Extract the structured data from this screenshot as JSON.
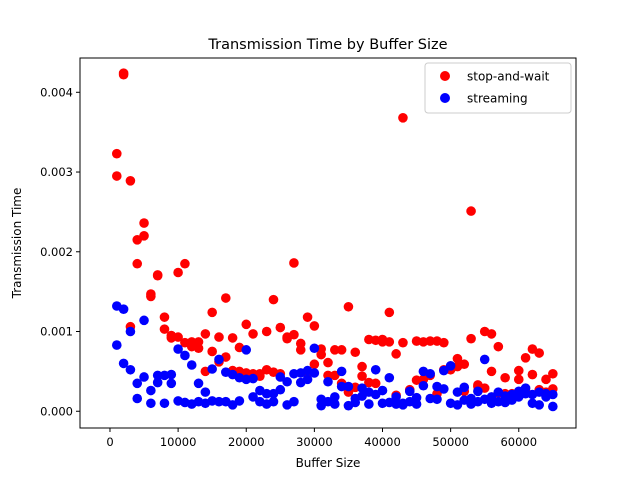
{
  "chart_data": {
    "type": "scatter",
    "title": "Transmission Time by Buffer Size",
    "xlabel": "Buffer Size",
    "ylabel": "Transmission Time",
    "xlim": [
      -4400,
      68400
    ],
    "ylim": [
      -0.00021,
      0.00443
    ],
    "xticks": [
      {
        "value": 0,
        "label": "0"
      },
      {
        "value": 10000,
        "label": "10000"
      },
      {
        "value": 20000,
        "label": "20000"
      },
      {
        "value": 30000,
        "label": "30000"
      },
      {
        "value": 40000,
        "label": "40000"
      },
      {
        "value": 50000,
        "label": "50000"
      },
      {
        "value": 60000,
        "label": "60000"
      }
    ],
    "yticks": [
      {
        "value": 0,
        "label": "0.000"
      },
      {
        "value": 0.001,
        "label": "0.001"
      },
      {
        "value": 0.002,
        "label": "0.002"
      },
      {
        "value": 0.003,
        "label": "0.003"
      },
      {
        "value": 0.004,
        "label": "0.004"
      }
    ],
    "grid": false,
    "legend_position": "top-right",
    "series": [
      {
        "name": "stop-and-wait",
        "color": "#ff0000",
        "points": [
          [
            1000,
            0.00323
          ],
          [
            1000,
            0.00295
          ],
          [
            2000,
            0.00424
          ],
          [
            2000,
            0.00422
          ],
          [
            3000,
            0.00289
          ],
          [
            3000,
            0.00106
          ],
          [
            4000,
            0.00215
          ],
          [
            4000,
            0.00185
          ],
          [
            5000,
            0.00236
          ],
          [
            5000,
            0.0022
          ],
          [
            6000,
            0.00147
          ],
          [
            6000,
            0.00144
          ],
          [
            7000,
            0.00171
          ],
          [
            7000,
            0.0017
          ],
          [
            8000,
            0.00118
          ],
          [
            8000,
            0.00103
          ],
          [
            9000,
            0.00095
          ],
          [
            9000,
            0.00092
          ],
          [
            10000,
            0.00174
          ],
          [
            10000,
            0.00093
          ],
          [
            11000,
            0.00185
          ],
          [
            11000,
            0.00086
          ],
          [
            12000,
            0.00087
          ],
          [
            12000,
            0.00081
          ],
          [
            13000,
            0.00087
          ],
          [
            13000,
            0.00079
          ],
          [
            14000,
            0.00097
          ],
          [
            14000,
            0.0005
          ],
          [
            15000,
            0.00124
          ],
          [
            15000,
            0.00075
          ],
          [
            16000,
            0.00093
          ],
          [
            16000,
            0.00062
          ],
          [
            17000,
            0.00142
          ],
          [
            17000,
            0.00068
          ],
          [
            18000,
            0.00092
          ],
          [
            18000,
            0.00051
          ],
          [
            19000,
            0.0008
          ],
          [
            19000,
            0.0005
          ],
          [
            20000,
            0.00109
          ],
          [
            20000,
            0.00048
          ],
          [
            21000,
            0.00097
          ],
          [
            21000,
            0.00047
          ],
          [
            22000,
            0.00047
          ],
          [
            22000,
            0.00044
          ],
          [
            23000,
            0.001
          ],
          [
            23000,
            0.00052
          ],
          [
            24000,
            0.0014
          ],
          [
            24000,
            0.00049
          ],
          [
            25000,
            0.00105
          ],
          [
            25000,
            0.00047
          ],
          [
            26000,
            0.00093
          ],
          [
            26000,
            0.00091
          ],
          [
            27000,
            0.00186
          ],
          [
            27000,
            0.00096
          ],
          [
            28000,
            0.00085
          ],
          [
            28000,
            0.00077
          ],
          [
            29000,
            0.00118
          ],
          [
            29000,
            0.00048
          ],
          [
            30000,
            0.00107
          ],
          [
            30000,
            0.00059
          ],
          [
            31000,
            0.00078
          ],
          [
            31000,
            0.00071
          ],
          [
            32000,
            0.00061
          ],
          [
            32000,
            0.00045
          ],
          [
            33000,
            0.00077
          ],
          [
            33000,
            0.00045
          ],
          [
            34000,
            0.00077
          ],
          [
            34000,
            0.00035
          ],
          [
            35000,
            0.00131
          ],
          [
            35000,
            0.00024
          ],
          [
            36000,
            0.00074
          ],
          [
            36000,
            0.0003
          ],
          [
            37000,
            0.00056
          ],
          [
            37000,
            0.00044
          ],
          [
            38000,
            0.0009
          ],
          [
            38000,
            0.00036
          ],
          [
            39000,
            0.00089
          ],
          [
            39000,
            0.00035
          ],
          [
            40000,
            0.0009
          ],
          [
            40000,
            0.00087
          ],
          [
            41000,
            0.00124
          ],
          [
            41000,
            0.00087
          ],
          [
            42000,
            0.00072
          ],
          [
            42000,
            0.0002
          ],
          [
            43000,
            0.00368
          ],
          [
            43000,
            0.00086
          ],
          [
            44000,
            0.00027
          ],
          [
            44000,
            0.00026
          ],
          [
            45000,
            0.00088
          ],
          [
            45000,
            0.00039
          ],
          [
            46000,
            0.00087
          ],
          [
            46000,
            0.0004
          ],
          [
            47000,
            0.00088
          ],
          [
            47000,
            0.00045
          ],
          [
            48000,
            0.00088
          ],
          [
            48000,
            0.00022
          ],
          [
            49000,
            0.00086
          ],
          [
            49000,
            0.00052
          ],
          [
            50000,
            0.00053
          ],
          [
            50000,
            0.00052
          ],
          [
            51000,
            0.00066
          ],
          [
            51000,
            0.00056
          ],
          [
            52000,
            0.00059
          ],
          [
            52000,
            0.00025
          ],
          [
            53000,
            0.00251
          ],
          [
            53000,
            0.00091
          ],
          [
            54000,
            0.00033
          ],
          [
            54000,
            0.00031
          ],
          [
            55000,
            0.001
          ],
          [
            55000,
            0.00029
          ],
          [
            56000,
            0.00097
          ],
          [
            56000,
            0.0005
          ],
          [
            57000,
            0.00081
          ],
          [
            57000,
            0.00023
          ],
          [
            58000,
            0.00042
          ],
          [
            58000,
            0.00022
          ],
          [
            59000,
            0.00022
          ],
          [
            59000,
            0.00021
          ],
          [
            60000,
            0.00051
          ],
          [
            60000,
            0.0004
          ],
          [
            61000,
            0.00067
          ],
          [
            61000,
            0.00025
          ],
          [
            62000,
            0.00078
          ],
          [
            62000,
            0.00046
          ],
          [
            63000,
            0.00073
          ],
          [
            63000,
            0.00027
          ],
          [
            64000,
            0.0004
          ],
          [
            64000,
            0.00024
          ],
          [
            65000,
            0.00047
          ],
          [
            65000,
            0.00028
          ]
        ]
      },
      {
        "name": "streaming",
        "color": "#0000ff",
        "points": [
          [
            1000,
            0.00132
          ],
          [
            1000,
            0.00083
          ],
          [
            2000,
            0.00128
          ],
          [
            2000,
            0.0006
          ],
          [
            3000,
            0.001
          ],
          [
            3000,
            0.00052
          ],
          [
            4000,
            0.00035
          ],
          [
            4000,
            0.00016
          ],
          [
            5000,
            0.00114
          ],
          [
            5000,
            0.00043
          ],
          [
            6000,
            0.00026
          ],
          [
            6000,
            0.0001
          ],
          [
            7000,
            0.00045
          ],
          [
            7000,
            0.00036
          ],
          [
            8000,
            0.00045
          ],
          [
            8000,
            0.0001
          ],
          [
            9000,
            0.00046
          ],
          [
            9000,
            0.00035
          ],
          [
            10000,
            0.00078
          ],
          [
            10000,
            0.00013
          ],
          [
            11000,
            0.0007
          ],
          [
            11000,
            0.00011
          ],
          [
            12000,
            0.00058
          ],
          [
            12000,
            9e-05
          ],
          [
            13000,
            0.00035
          ],
          [
            13000,
            0.00012
          ],
          [
            14000,
            0.00024
          ],
          [
            14000,
            0.0001
          ],
          [
            15000,
            0.00053
          ],
          [
            15000,
            0.00013
          ],
          [
            16000,
            0.00065
          ],
          [
            16000,
            0.00012
          ],
          [
            17000,
            0.00049
          ],
          [
            17000,
            0.00012
          ],
          [
            18000,
            0.00046
          ],
          [
            18000,
            8e-05
          ],
          [
            19000,
            0.00042
          ],
          [
            19000,
            0.00013
          ],
          [
            20000,
            0.00077
          ],
          [
            20000,
            0.0004
          ],
          [
            21000,
            0.00041
          ],
          [
            21000,
            0.00018
          ],
          [
            22000,
            0.00026
          ],
          [
            22000,
            0.00012
          ],
          [
            23000,
            0.00022
          ],
          [
            23000,
            9e-05
          ],
          [
            24000,
            0.00022
          ],
          [
            24000,
            0.00012
          ],
          [
            25000,
            0.00043
          ],
          [
            25000,
            0.00027
          ],
          [
            26000,
            0.00037
          ],
          [
            26000,
            8e-05
          ],
          [
            27000,
            0.00047
          ],
          [
            27000,
            0.00012
          ],
          [
            28000,
            0.00048
          ],
          [
            28000,
            0.00036
          ],
          [
            29000,
            0.00051
          ],
          [
            29000,
            0.0004
          ],
          [
            30000,
            0.00079
          ],
          [
            30000,
            0.00048
          ],
          [
            31000,
            0.00015
          ],
          [
            31000,
            7e-05
          ],
          [
            32000,
            0.00037
          ],
          [
            32000,
            0.00012
          ],
          [
            33000,
            0.00018
          ],
          [
            33000,
            9e-05
          ],
          [
            34000,
            0.0005
          ],
          [
            34000,
            0.00031
          ],
          [
            35000,
            0.00031
          ],
          [
            35000,
            7e-05
          ],
          [
            36000,
            0.00016
          ],
          [
            36000,
            0.00011
          ],
          [
            37000,
            0.00029
          ],
          [
            37000,
            0.00019
          ],
          [
            38000,
            0.00024
          ],
          [
            38000,
            9e-05
          ],
          [
            39000,
            0.00052
          ],
          [
            39000,
            0.00021
          ],
          [
            40000,
            0.00026
          ],
          [
            40000,
            0.0001
          ],
          [
            41000,
            0.00042
          ],
          [
            41000,
            0.00011
          ],
          [
            42000,
            0.00018
          ],
          [
            42000,
            9e-05
          ],
          [
            43000,
            0.0001
          ],
          [
            43000,
            8e-05
          ],
          [
            44000,
            0.00025
          ],
          [
            44000,
            0.00012
          ],
          [
            45000,
            0.00017
          ],
          [
            45000,
            9e-05
          ],
          [
            46000,
            0.0005
          ],
          [
            46000,
            0.00032
          ],
          [
            47000,
            0.00047
          ],
          [
            47000,
            0.00016
          ],
          [
            48000,
            0.00031
          ],
          [
            48000,
            0.00015
          ],
          [
            49000,
            0.00051
          ],
          [
            49000,
            0.00028
          ],
          [
            50000,
            0.00057
          ],
          [
            50000,
            0.0001
          ],
          [
            51000,
            0.00024
          ],
          [
            51000,
            8e-05
          ],
          [
            52000,
            0.0003
          ],
          [
            52000,
            0.00014
          ],
          [
            53000,
            0.00016
          ],
          [
            53000,
            9e-05
          ],
          [
            54000,
            0.00025
          ],
          [
            54000,
            0.00012
          ],
          [
            55000,
            0.00065
          ],
          [
            55000,
            0.00015
          ],
          [
            56000,
            0.00018
          ],
          [
            56000,
            0.0001
          ],
          [
            57000,
            0.00024
          ],
          [
            57000,
            0.00012
          ],
          [
            58000,
            0.00019
          ],
          [
            58000,
            0.00011
          ],
          [
            59000,
            0.00021
          ],
          [
            59000,
            0.00014
          ],
          [
            60000,
            0.00025
          ],
          [
            60000,
            0.00018
          ],
          [
            61000,
            0.00029
          ],
          [
            61000,
            0.00022
          ],
          [
            62000,
            0.00021
          ],
          [
            62000,
            0.0001
          ],
          [
            63000,
            0.00024
          ],
          [
            63000,
            8e-05
          ],
          [
            64000,
            0.00022
          ],
          [
            64000,
            0.00018
          ],
          [
            65000,
            0.00021
          ],
          [
            65000,
            6e-05
          ]
        ]
      }
    ]
  }
}
